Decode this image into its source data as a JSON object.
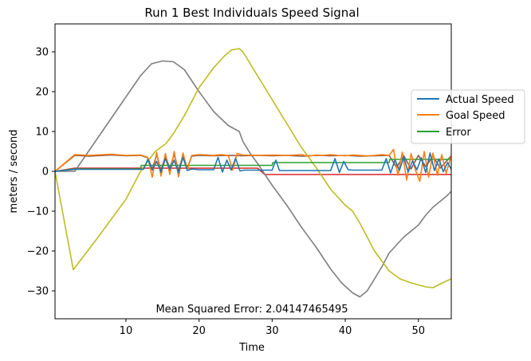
{
  "chart_data": {
    "type": "line",
    "title": "Run 1 Best Individuals Speed Signal",
    "xlabel": "Time",
    "ylabel": "meters / second",
    "xlim": [
      0.3,
      54.5
    ],
    "ylim": [
      -37,
      37
    ],
    "xticks": [
      10,
      20,
      30,
      40,
      50
    ],
    "yticks": [
      -30,
      -20,
      -10,
      0,
      10,
      20,
      30
    ],
    "grid": false,
    "legend_position": "right",
    "annotation": "Mean Squared Error: 2.04147465495",
    "legend": [
      {
        "name": "Actual Speed",
        "color": "#1f77b4"
      },
      {
        "name": "Goal Speed",
        "color": "#ff7f0e"
      },
      {
        "name": "Error",
        "color": "#2ca02c"
      }
    ],
    "series": [
      {
        "name": "Actual Speed",
        "color": "#1f77b4",
        "x": [
          0.3,
          3,
          12.4,
          13,
          13.6,
          14.2,
          14.8,
          15.4,
          16,
          16.6,
          17.2,
          17.8,
          18.4,
          19,
          20,
          21,
          22,
          22.6,
          23.2,
          23.8,
          24.4,
          25,
          25.6,
          26.2,
          27,
          28,
          29,
          30,
          30.5,
          31,
          32,
          33,
          34,
          35,
          36,
          37,
          38,
          38.6,
          39.2,
          39.8,
          40.4,
          41,
          42,
          43,
          44,
          45,
          45.6,
          46.2,
          46.8,
          47.4,
          48,
          48.6,
          49.2,
          49.8,
          50.4,
          51,
          51.6,
          52.2,
          52.8,
          53.4,
          54,
          54.5
        ],
        "y": [
          0,
          0.5,
          0.5,
          3,
          0.3,
          2.5,
          -0.2,
          3.2,
          0.4,
          2.8,
          -0.3,
          3.5,
          0.2,
          0.6,
          0.4,
          0.4,
          0.4,
          3.5,
          -0.2,
          2.8,
          0.3,
          3.3,
          0.1,
          0.3,
          0.3,
          0.3,
          0.3,
          0.3,
          2.8,
          0.2,
          0.2,
          0.2,
          0.2,
          0.2,
          0.2,
          0.2,
          0.2,
          3.2,
          -0.3,
          2.5,
          0.4,
          0.3,
          0.3,
          0.3,
          0.3,
          0.3,
          3.2,
          -0.4,
          2.9,
          0.2,
          3.6,
          -0.2,
          2.6,
          0.4,
          3.4,
          -0.3,
          4.6,
          0.2,
          3.1,
          -0.1,
          2.2,
          0.5
        ]
      },
      {
        "name": "Goal Speed",
        "color": "#ff7f0e",
        "x": [
          0.3,
          3,
          5,
          8,
          10,
          12,
          13,
          13.6,
          14.2,
          14.8,
          15.4,
          16,
          16.6,
          17.2,
          17.8,
          18.4,
          19,
          20,
          21,
          22,
          23,
          24,
          24.6,
          25.2,
          26,
          28,
          30,
          32,
          34,
          35,
          36,
          37,
          38,
          39,
          40,
          41,
          42,
          43,
          44,
          45,
          46,
          46.6,
          47.2,
          47.8,
          48.4,
          49,
          49.6,
          50.2,
          50.8,
          51.4,
          52,
          52.6,
          53.2,
          53.8,
          54.5
        ],
        "y": [
          0,
          4.2,
          4.0,
          4.3,
          4.0,
          4.1,
          3.5,
          -1.5,
          4.8,
          -1.2,
          4.5,
          -0.8,
          5,
          -1.4,
          4.6,
          0.5,
          4.0,
          4.2,
          4.1,
          4.0,
          4.2,
          4.0,
          0.3,
          4.5,
          4.1,
          4.0,
          4.1,
          4.0,
          4.2,
          3.8,
          4.1,
          4.0,
          4.2,
          4.0,
          3.9,
          4.1,
          4.0,
          3.9,
          4.0,
          4.2,
          4.0,
          5.5,
          -1.0,
          4.8,
          -2.2,
          4.5,
          0.3,
          -2.5,
          5.0,
          -1.5,
          4.6,
          -1.0,
          4.2,
          -0.5,
          4.0
        ]
      },
      {
        "name": "Error",
        "color": "#2ca02c",
        "x": [
          0.3,
          3,
          12,
          12.1,
          30,
          30.1,
          46,
          46.1,
          54.5
        ],
        "y": [
          0,
          0.6,
          0.6,
          1.5,
          1.5,
          2.2,
          2.2,
          3.0,
          3.0
        ]
      },
      {
        "name": "",
        "color": "#d62728",
        "x": [
          0.3,
          3,
          28,
          29,
          54.5
        ],
        "y": [
          0,
          0.8,
          0.8,
          -0.8,
          -0.8
        ]
      },
      {
        "name": "",
        "color": "#7f7f7f",
        "x": [
          0.3,
          3,
          6,
          9,
          12,
          13.5,
          15,
          16.5,
          18,
          20,
          22,
          24,
          25.5,
          26,
          27,
          28,
          30,
          32,
          34,
          36,
          38,
          39.5,
          41,
          42,
          43,
          44,
          45,
          46,
          47,
          48,
          49,
          50,
          51,
          52,
          53,
          54,
          54.5
        ],
        "y": [
          0,
          0,
          8,
          16,
          24,
          27,
          27.7,
          27.5,
          25.5,
          20,
          15,
          11.5,
          10,
          7.5,
          4.5,
          2,
          -3.5,
          -8.5,
          -14,
          -19,
          -24.5,
          -28,
          -30.5,
          -31.5,
          -30,
          -27,
          -24,
          -20.5,
          -18.5,
          -16.5,
          -15,
          -13.5,
          -11,
          -9,
          -7.5,
          -6,
          -5
        ]
      },
      {
        "name": "",
        "color": "#bcbd22",
        "x": [
          0.3,
          2.8,
          6,
          10,
          12,
          14,
          15.5,
          16.5,
          18,
          20,
          22,
          23.5,
          24.5,
          25.5,
          26,
          28,
          30,
          32,
          34,
          36,
          38,
          40,
          41,
          42,
          44,
          46,
          47.5,
          49,
          51,
          52,
          53.5,
          54.5
        ],
        "y": [
          0,
          -24.7,
          -17,
          -7,
          0,
          5,
          7,
          9.5,
          14,
          21,
          26,
          29,
          30.5,
          30.8,
          30,
          24,
          18,
          12,
          6,
          1,
          -4.5,
          -8.5,
          -10,
          -13,
          -20,
          -25,
          -27,
          -28,
          -29,
          -29.2,
          -27.8,
          -27
        ]
      },
      {
        "name": "",
        "color": "#8c564b",
        "x": [
          0.3,
          3,
          5,
          8,
          10,
          12,
          13,
          13.6,
          14.2,
          14.8,
          15.4,
          16,
          16.6,
          17.2,
          17.8,
          18.4,
          19,
          20,
          22,
          24,
          26,
          28,
          30,
          32,
          34,
          36,
          38,
          40,
          42,
          44,
          46,
          47,
          48,
          49,
          50,
          51,
          52,
          53,
          54.5
        ],
        "y": [
          0,
          4.0,
          3.8,
          4.1,
          3.9,
          4.0,
          3.4,
          0.5,
          4.2,
          0.2,
          4.0,
          0.6,
          4.3,
          0.1,
          4.1,
          0.8,
          3.8,
          4.0,
          3.9,
          4.0,
          3.9,
          4.0,
          3.9,
          4.0,
          3.8,
          4.0,
          3.9,
          4.0,
          3.8,
          3.9,
          4.0,
          1.0,
          3.9,
          0.6,
          4.0,
          1.2,
          3.8,
          0.8,
          3.9
        ]
      }
    ]
  }
}
